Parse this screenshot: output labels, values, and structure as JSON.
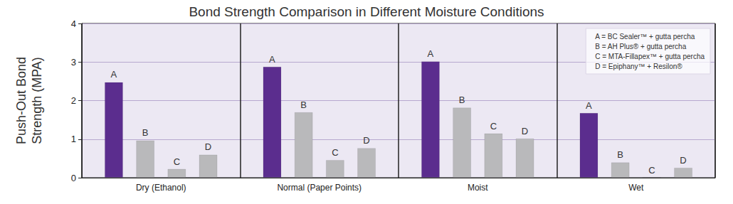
{
  "chart_data": {
    "type": "bar",
    "title": "Bond Strength Comparison in Different Moisture Conditions",
    "y_label": "Push-Out Bond\nStrength (MPA)",
    "categories": [
      "Dry (Ethanol)",
      "Normal (Paper Points)",
      "Moist",
      "Wet"
    ],
    "series": [
      {
        "name": "A",
        "description": "A = BC Sealer™ + gutta percha",
        "color": "#5b2d8e",
        "values": [
          2.48,
          2.88,
          3.02,
          1.68
        ]
      },
      {
        "name": "B",
        "description": "B = AH Plus® + gutta percha",
        "color": "#b9b9bb",
        "values": [
          0.97,
          1.7,
          1.82,
          0.4
        ]
      },
      {
        "name": "C",
        "description": "C = MTA-Fillapex™ + gutta percha",
        "color": "#b9b9bb",
        "values": [
          0.23,
          0.46,
          1.15,
          0
        ]
      },
      {
        "name": "D",
        "description": "D = Epiphany™ + Resilon®",
        "color": "#b9b9bb",
        "values": [
          0.6,
          0.77,
          1.02,
          0.26
        ]
      }
    ],
    "ylim": [
      0,
      4
    ],
    "yticks": [
      0,
      1,
      2,
      3,
      4
    ],
    "grid": true,
    "legend": "upper right"
  }
}
